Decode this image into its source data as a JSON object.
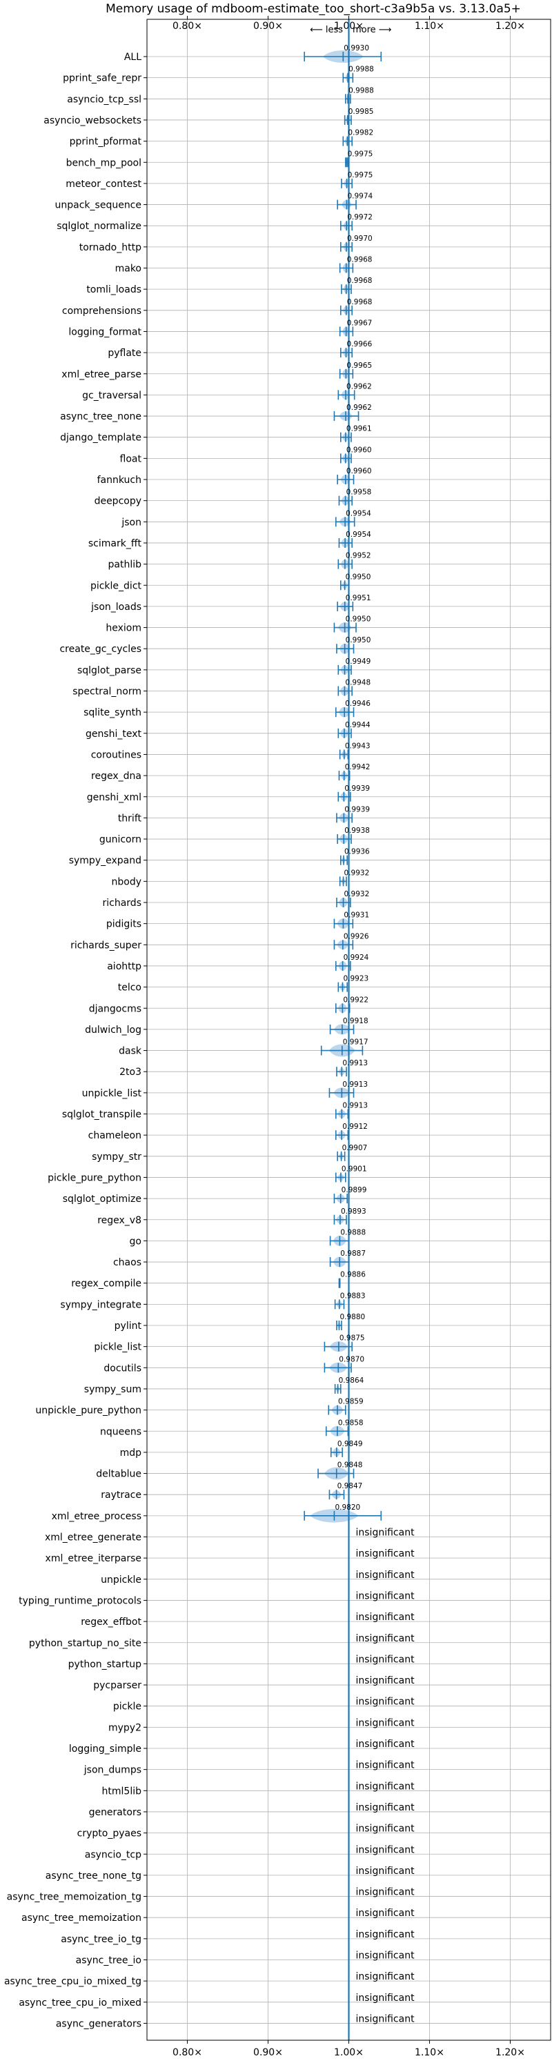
{
  "chart_data": {
    "type": "violin",
    "title": "Memory usage of mdboom-estimate_too_short-c3a9b5a vs. 3.13.0a5+",
    "direction_less": "⟵ less",
    "direction_more": "more ⟶",
    "xlim": [
      0.75,
      1.25
    ],
    "xticks": [
      "0.80×",
      "0.90×",
      "1.00×",
      "1.10×",
      "1.20×"
    ],
    "grid": true,
    "colors": {
      "accent": "#1f77b4",
      "violin": "#a6c8e8",
      "grid": "#b0b0b0"
    },
    "insignificant_label": "insignificant",
    "benchmarks": [
      {
        "name": "ALL",
        "value": 0.993,
        "label": "0.9930",
        "spread": 0.05,
        "min": 0.945,
        "max": 1.04,
        "width": 12
      },
      {
        "name": "pprint_safe_repr",
        "value": 0.9988,
        "label": "0.9988",
        "spread": 0.006,
        "min": 0.993,
        "max": 1.005,
        "width": 8
      },
      {
        "name": "asyncio_tcp_ssl",
        "value": 0.9988,
        "label": "0.9988",
        "spread": 0.003,
        "min": 0.996,
        "max": 1.002,
        "width": 6
      },
      {
        "name": "asyncio_websockets",
        "value": 0.9985,
        "label": "0.9985",
        "spread": 0.005,
        "min": 0.995,
        "max": 1.003,
        "width": 7
      },
      {
        "name": "pprint_pformat",
        "value": 0.9982,
        "label": "0.9982",
        "spread": 0.006,
        "min": 0.993,
        "max": 1.004,
        "width": 8
      },
      {
        "name": "bench_mp_pool",
        "value": 0.9975,
        "label": "0.9975",
        "spread": 0.002,
        "min": 0.996,
        "max": 0.999,
        "width": 5
      },
      {
        "name": "meteor_contest",
        "value": 0.9975,
        "label": "0.9975",
        "spread": 0.007,
        "min": 0.991,
        "max": 1.004,
        "width": 8
      },
      {
        "name": "unpack_sequence",
        "value": 0.9974,
        "label": "0.9974",
        "spread": 0.012,
        "min": 0.986,
        "max": 1.009,
        "width": 9
      },
      {
        "name": "sqlglot_normalize",
        "value": 0.9972,
        "label": "0.9972",
        "spread": 0.008,
        "min": 0.99,
        "max": 1.004,
        "width": 8
      },
      {
        "name": "tornado_http",
        "value": 0.997,
        "label": "0.9970",
        "spread": 0.008,
        "min": 0.99,
        "max": 1.004,
        "width": 8
      },
      {
        "name": "mako",
        "value": 0.9968,
        "label": "0.9968",
        "spread": 0.009,
        "min": 0.989,
        "max": 1.005,
        "width": 9
      },
      {
        "name": "tomli_loads",
        "value": 0.9968,
        "label": "0.9968",
        "spread": 0.007,
        "min": 0.991,
        "max": 1.003,
        "width": 8
      },
      {
        "name": "comprehensions",
        "value": 0.9968,
        "label": "0.9968",
        "spread": 0.008,
        "min": 0.99,
        "max": 1.004,
        "width": 8
      },
      {
        "name": "logging_format",
        "value": 0.9967,
        "label": "0.9967",
        "spread": 0.009,
        "min": 0.989,
        "max": 1.005,
        "width": 9
      },
      {
        "name": "pyflate",
        "value": 0.9966,
        "label": "0.9966",
        "spread": 0.008,
        "min": 0.99,
        "max": 1.004,
        "width": 8
      },
      {
        "name": "xml_etree_parse",
        "value": 0.9965,
        "label": "0.9965",
        "spread": 0.009,
        "min": 0.989,
        "max": 1.005,
        "width": 9
      },
      {
        "name": "gc_traversal",
        "value": 0.9962,
        "label": "0.9962",
        "spread": 0.011,
        "min": 0.987,
        "max": 1.007,
        "width": 9
      },
      {
        "name": "async_tree_none",
        "value": 0.9962,
        "label": "0.9962",
        "spread": 0.016,
        "min": 0.982,
        "max": 1.012,
        "width": 9
      },
      {
        "name": "django_template",
        "value": 0.9961,
        "label": "0.9961",
        "spread": 0.008,
        "min": 0.99,
        "max": 1.003,
        "width": 8
      },
      {
        "name": "float",
        "value": 0.996,
        "label": "0.9960",
        "spread": 0.008,
        "min": 0.99,
        "max": 1.003,
        "width": 8
      },
      {
        "name": "fannkuch",
        "value": 0.996,
        "label": "0.9960",
        "spread": 0.012,
        "min": 0.986,
        "max": 1.006,
        "width": 9
      },
      {
        "name": "deepcopy",
        "value": 0.9958,
        "label": "0.9958",
        "spread": 0.01,
        "min": 0.988,
        "max": 1.004,
        "width": 9
      },
      {
        "name": "json",
        "value": 0.9954,
        "label": "0.9954",
        "spread": 0.014,
        "min": 0.984,
        "max": 1.007,
        "width": 9
      },
      {
        "name": "scimark_fft",
        "value": 0.9954,
        "label": "0.9954",
        "spread": 0.01,
        "min": 0.988,
        "max": 1.004,
        "width": 9
      },
      {
        "name": "pathlib",
        "value": 0.9952,
        "label": "0.9952",
        "spread": 0.01,
        "min": 0.987,
        "max": 1.004,
        "width": 9
      },
      {
        "name": "pickle_dict",
        "value": 0.995,
        "label": "0.9950",
        "spread": 0.007,
        "min": 0.99,
        "max": 1.0,
        "width": 7
      },
      {
        "name": "json_loads",
        "value": 0.9951,
        "label": "0.9951",
        "spread": 0.012,
        "min": 0.986,
        "max": 1.005,
        "width": 9
      },
      {
        "name": "hexiom",
        "value": 0.995,
        "label": "0.9950",
        "spread": 0.016,
        "min": 0.982,
        "max": 1.009,
        "width": 10
      },
      {
        "name": "create_gc_cycles",
        "value": 0.995,
        "label": "0.9950",
        "spread": 0.013,
        "min": 0.985,
        "max": 1.006,
        "width": 10
      },
      {
        "name": "sqlglot_parse",
        "value": 0.9949,
        "label": "0.9949",
        "spread": 0.01,
        "min": 0.987,
        "max": 1.003,
        "width": 9
      },
      {
        "name": "spectral_norm",
        "value": 0.9948,
        "label": "0.9948",
        "spread": 0.011,
        "min": 0.987,
        "max": 1.004,
        "width": 9
      },
      {
        "name": "sqlite_synth",
        "value": 0.9946,
        "label": "0.9946",
        "spread": 0.014,
        "min": 0.984,
        "max": 1.006,
        "width": 10
      },
      {
        "name": "genshi_text",
        "value": 0.9944,
        "label": "0.9944",
        "spread": 0.01,
        "min": 0.987,
        "max": 1.003,
        "width": 9
      },
      {
        "name": "coroutines",
        "value": 0.9943,
        "label": "0.9943",
        "spread": 0.007,
        "min": 0.989,
        "max": 0.999,
        "width": 7
      },
      {
        "name": "regex_dna",
        "value": 0.9942,
        "label": "0.9942",
        "spread": 0.008,
        "min": 0.988,
        "max": 1.001,
        "width": 8
      },
      {
        "name": "genshi_xml",
        "value": 0.9939,
        "label": "0.9939",
        "spread": 0.009,
        "min": 0.987,
        "max": 1.002,
        "width": 8
      },
      {
        "name": "thrift",
        "value": 0.9939,
        "label": "0.9939",
        "spread": 0.012,
        "min": 0.985,
        "max": 1.004,
        "width": 9
      },
      {
        "name": "gunicorn",
        "value": 0.9938,
        "label": "0.9938",
        "spread": 0.011,
        "min": 0.986,
        "max": 1.003,
        "width": 9
      },
      {
        "name": "sympy_expand",
        "value": 0.9936,
        "label": "0.9936",
        "spread": 0.005,
        "min": 0.99,
        "max": 0.998,
        "width": 6
      },
      {
        "name": "nbody",
        "value": 0.9932,
        "label": "0.9932",
        "spread": 0.005,
        "min": 0.989,
        "max": 0.997,
        "width": 6
      },
      {
        "name": "richards",
        "value": 0.9932,
        "label": "0.9932",
        "spread": 0.011,
        "min": 0.985,
        "max": 1.002,
        "width": 9
      },
      {
        "name": "pidigits",
        "value": 0.9931,
        "label": "0.9931",
        "spread": 0.015,
        "min": 0.982,
        "max": 1.005,
        "width": 10
      },
      {
        "name": "richards_super",
        "value": 0.9926,
        "label": "0.9926",
        "spread": 0.014,
        "min": 0.982,
        "max": 1.005,
        "width": 9
      },
      {
        "name": "aiohttp",
        "value": 0.9924,
        "label": "0.9924",
        "spread": 0.011,
        "min": 0.984,
        "max": 1.002,
        "width": 9
      },
      {
        "name": "telco",
        "value": 0.9923,
        "label": "0.9923",
        "spread": 0.007,
        "min": 0.987,
        "max": 0.998,
        "width": 7
      },
      {
        "name": "djangocms",
        "value": 0.9922,
        "label": "0.9922",
        "spread": 0.011,
        "min": 0.984,
        "max": 1.001,
        "width": 9
      },
      {
        "name": "dulwich_log",
        "value": 0.9918,
        "label": "0.9918",
        "spread": 0.02,
        "min": 0.977,
        "max": 1.006,
        "width": 10
      },
      {
        "name": "dask",
        "value": 0.9917,
        "label": "0.9917",
        "spread": 0.032,
        "min": 0.966,
        "max": 1.017,
        "width": 12
      },
      {
        "name": "2to3",
        "value": 0.9913,
        "label": "0.9913",
        "spread": 0.008,
        "min": 0.985,
        "max": 0.997,
        "width": 7
      },
      {
        "name": "unpickle_list",
        "value": 0.9913,
        "label": "0.9913",
        "spread": 0.02,
        "min": 0.976,
        "max": 1.006,
        "width": 10
      },
      {
        "name": "sqlglot_transpile",
        "value": 0.9913,
        "label": "0.9913",
        "spread": 0.01,
        "min": 0.984,
        "max": 0.999,
        "width": 8
      },
      {
        "name": "chameleon",
        "value": 0.9912,
        "label": "0.9912",
        "spread": 0.01,
        "min": 0.984,
        "max": 0.999,
        "width": 8
      },
      {
        "name": "sympy_str",
        "value": 0.9907,
        "label": "0.9907",
        "spread": 0.006,
        "min": 0.986,
        "max": 0.995,
        "width": 6
      },
      {
        "name": "pickle_pure_python",
        "value": 0.9901,
        "label": "0.9901",
        "spread": 0.008,
        "min": 0.984,
        "max": 0.996,
        "width": 7
      },
      {
        "name": "sqlglot_optimize",
        "value": 0.9899,
        "label": "0.9899",
        "spread": 0.011,
        "min": 0.982,
        "max": 0.998,
        "width": 8
      },
      {
        "name": "regex_v8",
        "value": 0.9893,
        "label": "0.9893",
        "spread": 0.01,
        "min": 0.982,
        "max": 0.997,
        "width": 8
      },
      {
        "name": "go",
        "value": 0.9888,
        "label": "0.9888",
        "spread": 0.016,
        "min": 0.977,
        "max": 1.0,
        "width": 10
      },
      {
        "name": "chaos",
        "value": 0.9887,
        "label": "0.9887",
        "spread": 0.016,
        "min": 0.977,
        "max": 1.0,
        "width": 10
      },
      {
        "name": "regex_compile",
        "value": 0.9886,
        "label": "0.9886",
        "spread": 0.001,
        "min": 0.988,
        "max": 0.989,
        "width": 4
      },
      {
        "name": "sympy_integrate",
        "value": 0.9883,
        "label": "0.9883",
        "spread": 0.007,
        "min": 0.983,
        "max": 0.994,
        "width": 7
      },
      {
        "name": "pylint",
        "value": 0.988,
        "label": "0.9880",
        "spread": 0.004,
        "min": 0.985,
        "max": 0.991,
        "width": 6
      },
      {
        "name": "pickle_list",
        "value": 0.9875,
        "label": "0.9875",
        "spread": 0.022,
        "min": 0.97,
        "max": 1.004,
        "width": 10
      },
      {
        "name": "docutils",
        "value": 0.987,
        "label": "0.9870",
        "spread": 0.022,
        "min": 0.97,
        "max": 1.003,
        "width": 10
      },
      {
        "name": "sympy_sum",
        "value": 0.9864,
        "label": "0.9864",
        "spread": 0.005,
        "min": 0.983,
        "max": 0.99,
        "width": 6
      },
      {
        "name": "unpickle_pure_python",
        "value": 0.9859,
        "label": "0.9859",
        "spread": 0.014,
        "min": 0.975,
        "max": 0.996,
        "width": 9
      },
      {
        "name": "nqueens",
        "value": 0.9858,
        "label": "0.9858",
        "spread": 0.018,
        "min": 0.972,
        "max": 0.999,
        "width": 10
      },
      {
        "name": "mdp",
        "value": 0.9849,
        "label": "0.9849",
        "spread": 0.01,
        "min": 0.978,
        "max": 0.992,
        "width": 8
      },
      {
        "name": "deltablue",
        "value": 0.9848,
        "label": "0.9848",
        "spread": 0.03,
        "min": 0.962,
        "max": 1.006,
        "width": 12
      },
      {
        "name": "raytrace",
        "value": 0.9847,
        "label": "0.9847",
        "spread": 0.012,
        "min": 0.976,
        "max": 0.994,
        "width": 8
      },
      {
        "name": "xml_etree_process",
        "value": 0.982,
        "label": "0.9820",
        "spread": 0.06,
        "min": 0.945,
        "max": 1.04,
        "width": 13
      },
      {
        "name": "xml_etree_generate",
        "insignificant": true
      },
      {
        "name": "xml_etree_iterparse",
        "insignificant": true
      },
      {
        "name": "unpickle",
        "insignificant": true
      },
      {
        "name": "typing_runtime_protocols",
        "insignificant": true
      },
      {
        "name": "regex_effbot",
        "insignificant": true
      },
      {
        "name": "python_startup_no_site",
        "insignificant": true
      },
      {
        "name": "python_startup",
        "insignificant": true
      },
      {
        "name": "pycparser",
        "insignificant": true
      },
      {
        "name": "pickle",
        "insignificant": true
      },
      {
        "name": "mypy2",
        "insignificant": true
      },
      {
        "name": "logging_simple",
        "insignificant": true
      },
      {
        "name": "json_dumps",
        "insignificant": true
      },
      {
        "name": "html5lib",
        "insignificant": true
      },
      {
        "name": "generators",
        "insignificant": true
      },
      {
        "name": "crypto_pyaes",
        "insignificant": true
      },
      {
        "name": "asyncio_tcp",
        "insignificant": true
      },
      {
        "name": "async_tree_none_tg",
        "insignificant": true
      },
      {
        "name": "async_tree_memoization_tg",
        "insignificant": true
      },
      {
        "name": "async_tree_memoization",
        "insignificant": true
      },
      {
        "name": "async_tree_io_tg",
        "insignificant": true
      },
      {
        "name": "async_tree_io",
        "insignificant": true
      },
      {
        "name": "async_tree_cpu_io_mixed_tg",
        "insignificant": true
      },
      {
        "name": "async_tree_cpu_io_mixed",
        "insignificant": true
      },
      {
        "name": "async_generators",
        "insignificant": true
      }
    ]
  }
}
